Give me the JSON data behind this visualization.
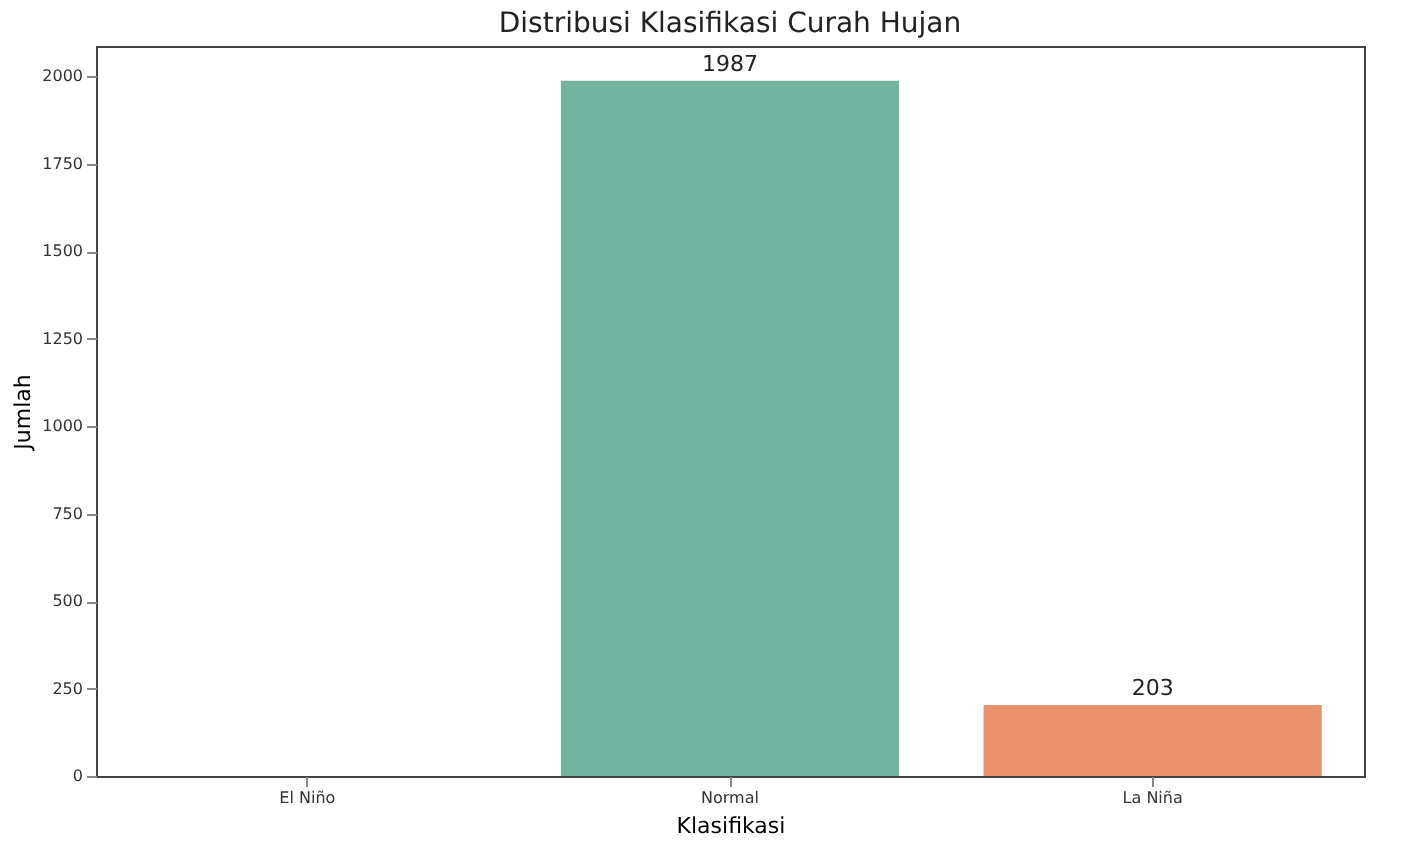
{
  "chart_data": {
    "type": "bar",
    "title": "Distribusi Klasifikasi Curah Hujan",
    "xlabel": "Klasifikasi",
    "ylabel": "Jumlah",
    "categories": [
      "El Niño",
      "Normal",
      "La Niña"
    ],
    "values": [
      0,
      1987,
      203
    ],
    "colors": [
      "#8da0cb",
      "#72b4a0",
      "#e8916a"
    ],
    "value_labels": [
      null,
      "1987",
      "203"
    ],
    "ylim": [
      0,
      2086
    ],
    "yticks": [
      0,
      250,
      500,
      750,
      1000,
      1250,
      1500,
      1750,
      2000
    ],
    "grid": false
  }
}
